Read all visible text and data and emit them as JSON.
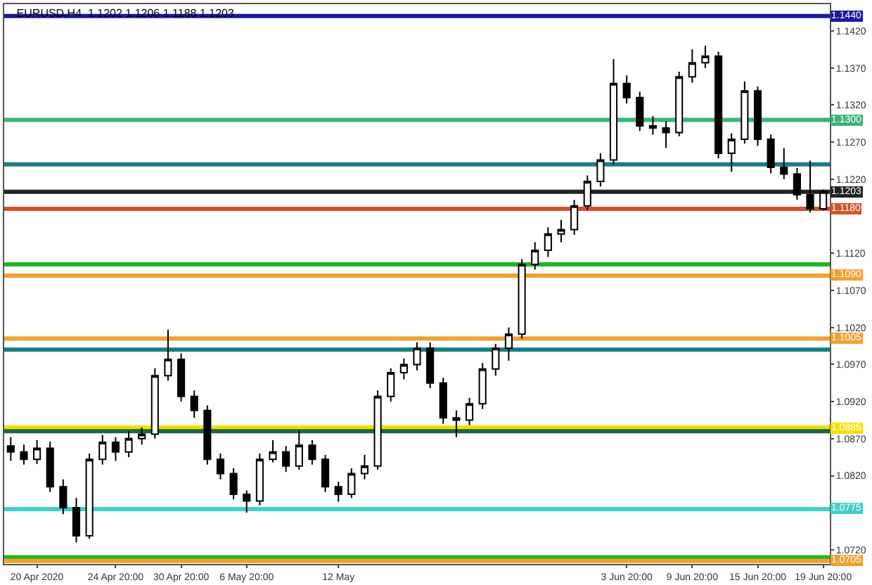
{
  "chart_data": {
    "type": "candlestick",
    "title": "EURUSD,H4  1.1202 1.1206 1.1188 1.1203",
    "categories": [
      null,
      null,
      "20 Apr 2020",
      null,
      null,
      null,
      null,
      null,
      "24 Apr 20:00",
      null,
      null,
      null,
      null,
      "30 Apr 20:00",
      null,
      null,
      null,
      null,
      "6 May 20:00",
      null,
      null,
      null,
      null,
      null,
      null,
      "12 May",
      null,
      null,
      null,
      null,
      null,
      null,
      null,
      null,
      null,
      null,
      null,
      null,
      null,
      null,
      null,
      null,
      null,
      null,
      null,
      null,
      null,
      "3 Jun 20:00",
      null,
      null,
      null,
      null,
      "9 Jun 20:00",
      null,
      null,
      null,
      null,
      "15 Jun 20:00",
      null,
      null,
      null,
      null,
      "19 Jun 20:00"
    ],
    "color": "#000000",
    "ohlc": [
      [
        1.086,
        1.0872,
        1.084,
        1.0852
      ],
      [
        1.0852,
        1.0862,
        1.0835,
        1.0842
      ],
      [
        1.0842,
        1.0868,
        1.0836,
        1.0857
      ],
      [
        1.0857,
        1.0866,
        1.0798,
        1.0805
      ],
      [
        1.0805,
        1.0815,
        1.0768,
        1.0777
      ],
      [
        1.0777,
        1.079,
        1.073,
        1.0739
      ],
      [
        1.0739,
        1.085,
        1.0735,
        1.0842
      ],
      [
        1.0842,
        1.0875,
        1.0835,
        1.0865
      ],
      [
        1.0865,
        1.0872,
        1.084,
        1.0852
      ],
      [
        1.0852,
        1.088,
        1.0845,
        1.087
      ],
      [
        1.087,
        1.0885,
        1.0862,
        1.0876
      ],
      [
        1.0876,
        1.0965,
        1.087,
        1.0955
      ],
      [
        1.0955,
        1.1017,
        1.0948,
        1.0977
      ],
      [
        1.0977,
        1.0985,
        1.092,
        1.0927
      ],
      [
        1.0927,
        1.0935,
        1.0898,
        1.0908
      ],
      [
        1.0908,
        1.0915,
        1.0835,
        1.0842
      ],
      [
        1.0842,
        1.085,
        1.0815,
        1.0823
      ],
      [
        1.0823,
        1.083,
        1.0788,
        1.0795
      ],
      [
        1.0795,
        1.08,
        1.077,
        1.0786
      ],
      [
        1.0786,
        1.085,
        1.078,
        1.0842
      ],
      [
        1.0842,
        1.0868,
        1.0838,
        1.0852
      ],
      [
        1.0852,
        1.086,
        1.0825,
        1.0833
      ],
      [
        1.0833,
        1.088,
        1.0828,
        1.0861
      ],
      [
        1.0861,
        1.0868,
        1.0835,
        1.0842
      ],
      [
        1.0842,
        1.0848,
        1.0798,
        1.0805
      ],
      [
        1.0805,
        1.0812,
        1.0785,
        1.0795
      ],
      [
        1.0795,
        1.083,
        1.079,
        1.0823
      ],
      [
        1.0823,
        1.0848,
        1.0815,
        1.0833
      ],
      [
        1.0833,
        1.0935,
        1.0828,
        1.0927
      ],
      [
        1.0927,
        1.0965,
        1.092,
        1.0959
      ],
      [
        1.0959,
        1.0978,
        1.095,
        1.097
      ],
      [
        1.097,
        1.1,
        1.0962,
        1.0992
      ],
      [
        1.0992,
        1.1,
        1.0938,
        1.0945
      ],
      [
        1.0945,
        1.0952,
        1.089,
        1.0898
      ],
      [
        1.0898,
        1.0908,
        1.0872,
        1.0895
      ],
      [
        1.0895,
        1.0925,
        1.0888,
        1.0917
      ],
      [
        1.0917,
        1.0972,
        1.091,
        1.0964
      ],
      [
        1.0964,
        1.0998,
        1.0955,
        1.0992
      ],
      [
        1.0992,
        1.102,
        1.0975,
        1.1011
      ],
      [
        1.1011,
        1.1112,
        1.1005,
        1.1105
      ],
      [
        1.1105,
        1.1135,
        1.1098,
        1.1124
      ],
      [
        1.1124,
        1.1155,
        1.1115,
        1.1146
      ],
      [
        1.1146,
        1.1165,
        1.1135,
        1.1152
      ],
      [
        1.1152,
        1.1192,
        1.1145,
        1.1184
      ],
      [
        1.1184,
        1.1225,
        1.1178,
        1.1217
      ],
      [
        1.1217,
        1.1255,
        1.121,
        1.1246
      ],
      [
        1.1246,
        1.1382,
        1.124,
        1.1349
      ],
      [
        1.1349,
        1.136,
        1.1322,
        1.133
      ],
      [
        1.133,
        1.1338,
        1.1285,
        1.1292
      ],
      [
        1.1292,
        1.1305,
        1.128,
        1.1289
      ],
      [
        1.1289,
        1.1298,
        1.1262,
        1.1283
      ],
      [
        1.1283,
        1.1365,
        1.1278,
        1.1358
      ],
      [
        1.1358,
        1.1395,
        1.135,
        1.1377
      ],
      [
        1.1377,
        1.14,
        1.137,
        1.1386
      ],
      [
        1.1386,
        1.1392,
        1.1248,
        1.1255
      ],
      [
        1.1255,
        1.1282,
        1.123,
        1.1274
      ],
      [
        1.1274,
        1.1352,
        1.1268,
        1.1339
      ],
      [
        1.1339,
        1.1345,
        1.1265,
        1.1274
      ],
      [
        1.1274,
        1.128,
        1.1228,
        1.1236
      ],
      [
        1.1236,
        1.1262,
        1.122,
        1.1227
      ],
      [
        1.1227,
        1.1235,
        1.1192,
        1.1199
      ],
      [
        1.1199,
        1.1245,
        1.1175,
        1.118
      ],
      [
        1.118,
        1.1206,
        1.1178,
        1.1203
      ]
    ],
    "ylim": [
      1.0701,
      1.1456
    ],
    "yticks": [
      {
        "value": 1.072,
        "label": "1.0720"
      },
      {
        "value": 1.082,
        "label": "1.0820"
      },
      {
        "value": 1.087,
        "label": "1.0870"
      },
      {
        "value": 1.092,
        "label": "1.0920"
      },
      {
        "value": 1.097,
        "label": "1.0970"
      },
      {
        "value": 1.102,
        "label": "1.1020"
      },
      {
        "value": 1.107,
        "label": "1.1070"
      },
      {
        "value": 1.112,
        "label": "1.1120"
      },
      {
        "value": 1.122,
        "label": "1.1220"
      },
      {
        "value": 1.127,
        "label": "1.1270"
      },
      {
        "value": 1.132,
        "label": "1.1320"
      },
      {
        "value": 1.137,
        "label": "1.1370"
      },
      {
        "value": 1.142,
        "label": "1.1420"
      }
    ],
    "ref_lines": [
      {
        "axis": "y",
        "value": 1.144,
        "label": "1.1440",
        "color": "#1a1aa0"
      },
      {
        "axis": "y",
        "value": 1.13,
        "label": "1.1300",
        "color": "#3cb37a"
      },
      {
        "axis": "y",
        "value": 1.124,
        "label": null,
        "color": "#1f7a80"
      },
      {
        "axis": "y",
        "value": 1.1203,
        "label": "1.1203",
        "color": "#222222"
      },
      {
        "axis": "y",
        "value": 1.118,
        "label": "1.1180",
        "color": "#d2522a"
      },
      {
        "axis": "y",
        "value": 1.1105,
        "label": null,
        "color": "#22b422"
      },
      {
        "axis": "y",
        "value": 1.109,
        "label": "1.1090",
        "color": "#f0a030"
      },
      {
        "axis": "y",
        "value": 1.1005,
        "label": "1.1005",
        "color": "#f0a030"
      },
      {
        "axis": "y",
        "value": 1.099,
        "label": null,
        "color": "#147f80"
      },
      {
        "axis": "y",
        "value": 1.0885,
        "label": "1.0885",
        "color": "#f5e000"
      },
      {
        "axis": "y",
        "value": 1.088,
        "label": null,
        "color": "#1a6a40"
      },
      {
        "axis": "y",
        "value": 1.0775,
        "label": "1.0775",
        "color": "#40d0c8"
      },
      {
        "axis": "y",
        "value": 1.071,
        "label": null,
        "color": "#22b422"
      },
      {
        "axis": "y",
        "value": 1.0705,
        "label": "1.0705",
        "color": "#f0a030"
      }
    ]
  }
}
